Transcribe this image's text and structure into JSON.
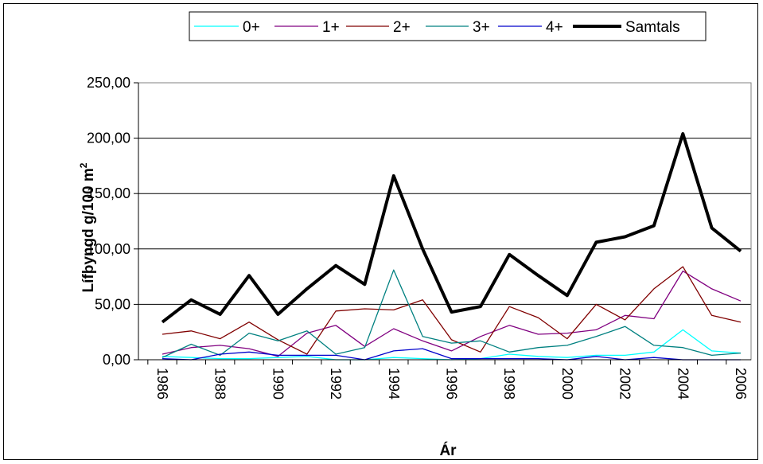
{
  "chart_data": {
    "type": "line",
    "title": "",
    "xlabel": "Ár",
    "ylabel": "Lífþyngd g/100 m",
    "ylabel_sup": "2",
    "ylim": [
      0,
      250
    ],
    "yticks": [
      "0,00",
      "50,00",
      "100,00",
      "150,00",
      "200,00",
      "250,00"
    ],
    "xticks": [
      "1986",
      "1988",
      "1990",
      "1992",
      "1994",
      "1996",
      "1998",
      "2000",
      "2002",
      "2004",
      "2006"
    ],
    "grid": "horizontal",
    "legend_position": "top",
    "x": [
      1986,
      1987,
      1988,
      1989,
      1990,
      1991,
      1992,
      1993,
      1994,
      1995,
      1996,
      1997,
      1998,
      1999,
      2000,
      2001,
      2002,
      2003,
      2004,
      2005,
      2006
    ],
    "series": [
      {
        "name": "0+",
        "color": "#00ffff",
        "width": 1.3,
        "values": [
          3,
          2,
          1,
          1,
          2,
          3,
          0,
          0,
          2,
          1,
          0,
          1,
          5,
          3,
          2,
          4,
          4,
          7,
          27,
          8,
          6
        ]
      },
      {
        "name": "1+",
        "color": "#800080",
        "width": 1.3,
        "values": [
          5,
          11,
          13,
          10,
          3,
          24,
          31,
          12,
          28,
          17,
          8,
          21,
          31,
          23,
          24,
          27,
          40,
          37,
          80,
          64,
          53
        ]
      },
      {
        "name": "2+",
        "color": "#800000",
        "width": 1.3,
        "values": [
          23,
          26,
          19,
          34,
          18,
          5,
          44,
          46,
          45,
          54,
          18,
          7,
          48,
          38,
          19,
          50,
          36,
          64,
          84,
          40,
          34
        ]
      },
      {
        "name": "3+",
        "color": "#008080",
        "width": 1.3,
        "values": [
          2,
          14,
          4,
          24,
          17,
          26,
          5,
          11,
          81,
          21,
          15,
          17,
          7,
          11,
          13,
          21,
          30,
          13,
          11,
          4,
          6
        ]
      },
      {
        "name": "4+",
        "color": "#0000cc",
        "width": 1.3,
        "values": [
          1,
          0,
          5,
          7,
          4,
          4,
          4,
          0,
          8,
          10,
          1,
          1,
          1,
          1,
          0,
          3,
          0,
          2,
          0,
          0,
          0
        ]
      },
      {
        "name": "Samtals",
        "color": "#000000",
        "width": 4,
        "values": [
          34,
          54,
          41,
          76,
          41,
          64,
          85,
          68,
          166,
          100,
          43,
          48,
          95,
          76,
          58,
          106,
          111,
          121,
          204,
          119,
          98
        ]
      }
    ]
  }
}
